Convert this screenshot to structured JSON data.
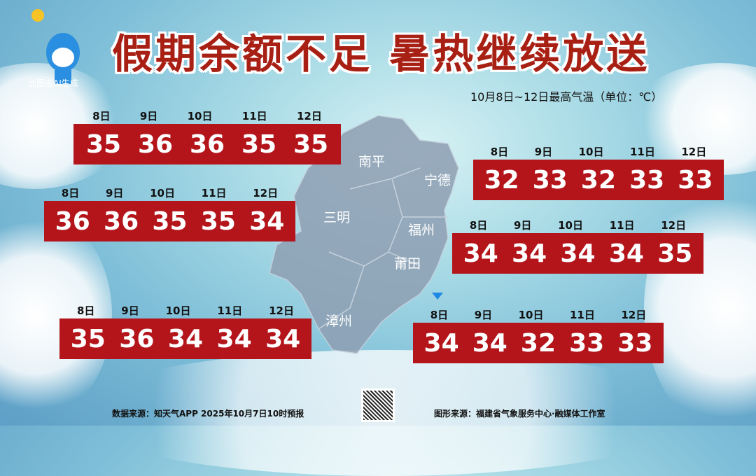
{
  "title": "假期余额不足  暑热继续放送",
  "subtitle": "10月8日~12日最高气温（单位：℃）",
  "logo_caption": "此图由AI生成",
  "days": [
    "8日",
    "9日",
    "10日",
    "11日",
    "12日"
  ],
  "cities": [
    {
      "name": "南平",
      "temps": [
        "35",
        "36",
        "36",
        "35",
        "35"
      ]
    },
    {
      "name": "三明",
      "temps": [
        "36",
        "36",
        "35",
        "35",
        "34"
      ]
    },
    {
      "name": "漳州",
      "temps": [
        "35",
        "36",
        "34",
        "34",
        "34"
      ]
    },
    {
      "name": "宁德",
      "temps": [
        "32",
        "33",
        "32",
        "33",
        "33"
      ]
    },
    {
      "name": "福州",
      "temps": [
        "34",
        "34",
        "34",
        "34",
        "35"
      ]
    },
    {
      "name": "莆田",
      "temps": [
        "34",
        "34",
        "32",
        "33",
        "33"
      ]
    }
  ],
  "footer": {
    "source": "数据来源：知天气APP  2025年10月7日10时预报",
    "credit": "图形来源：福建省气象服务中心·融媒体工作室"
  },
  "colors": {
    "panel": "#b3151b",
    "title": "#a82014"
  }
}
